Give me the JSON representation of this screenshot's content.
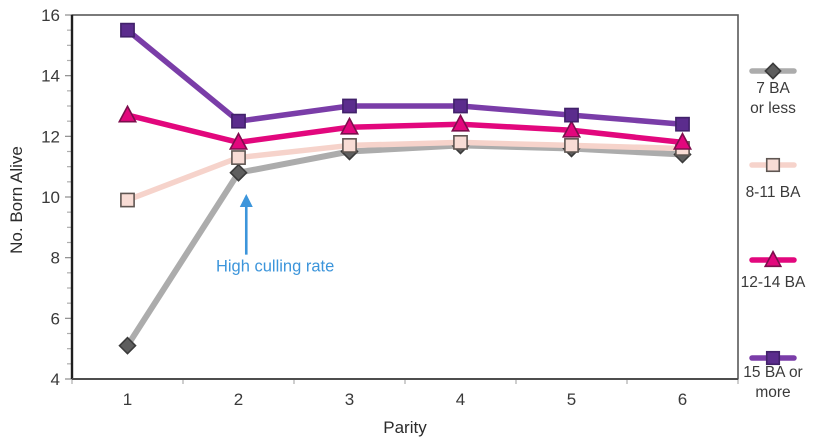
{
  "chart_data": {
    "type": "line",
    "title": "",
    "xlabel": "Parity",
    "ylabel": "No. Born Alive",
    "x_categories": [
      "1",
      "2",
      "3",
      "4",
      "5",
      "6"
    ],
    "ylim": [
      4,
      16
    ],
    "y_major_ticks": [
      "4",
      "6",
      "8",
      "10",
      "12",
      "14",
      "16"
    ],
    "y_major_tick_values": [
      4,
      6,
      8,
      10,
      12,
      14,
      16
    ],
    "y_minor_tick_step": 0.5,
    "grid": false,
    "legend_position": "right",
    "series": [
      {
        "name": "7 BA or less",
        "legend_lines": [
          "7 BA",
          "or less"
        ],
        "marker": "diamond",
        "line_color": "#ACACAC",
        "marker_fill": "#5E5E5E",
        "marker_stroke": "#3B3B3B",
        "values": [
          5.1,
          10.8,
          11.5,
          11.7,
          11.6,
          11.4
        ]
      },
      {
        "name": "8-11 BA",
        "legend_lines": [
          "8-11 BA"
        ],
        "marker": "square",
        "line_color": "#F6D3CB",
        "marker_fill": "#F8DCD5",
        "marker_stroke": "#5F5652",
        "values": [
          9.9,
          11.3,
          11.7,
          11.8,
          11.7,
          11.6
        ]
      },
      {
        "name": "12-14 BA",
        "legend_lines": [
          "12-14 BA"
        ],
        "marker": "triangle",
        "line_color": "#E2077D",
        "marker_fill": "#E2077D",
        "marker_stroke": "#7C0E4C",
        "values": [
          12.7,
          11.8,
          12.3,
          12.4,
          12.2,
          11.8
        ]
      },
      {
        "name": "15 BA or more",
        "legend_lines": [
          "15 BA or",
          "more"
        ],
        "marker": "square",
        "line_color": "#7A3DA8",
        "marker_fill": "#5B2C8D",
        "marker_stroke": "#41216A",
        "values": [
          15.5,
          12.5,
          13.0,
          13.0,
          12.7,
          12.4
        ]
      }
    ],
    "annotation": {
      "text": "High culling rate",
      "color": "#3C95DB",
      "arrow_x": 2.07,
      "arrow_y_start": 8.1,
      "arrow_y_end": 10.1,
      "text_x": 2.33,
      "text_y": 7.55
    },
    "axis_text_color": "#3A3A3A",
    "axis_line_color": "#1F1F1F",
    "plot_border_color": "#595959",
    "tick_color": "#ADADAD"
  }
}
